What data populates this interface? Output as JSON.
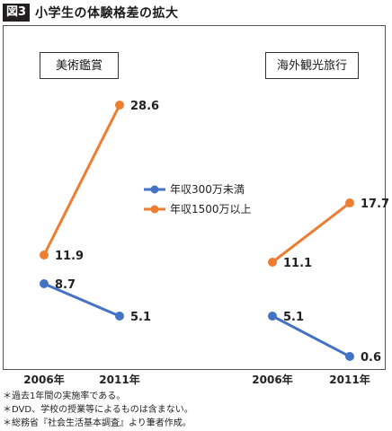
{
  "header": {
    "badge": "図3",
    "title": "小学生の体験格差の拡大"
  },
  "chart_data": {
    "type": "line",
    "panels": [
      {
        "title": "美術鑑賞",
        "categories": [
          "2006年",
          "2011年"
        ],
        "series": [
          {
            "name": "年収300万未満",
            "values": [
              8.7,
              5.1
            ]
          },
          {
            "name": "年収1500万以上",
            "values": [
              11.9,
              28.6
            ]
          }
        ]
      },
      {
        "title": "海外観光旅行",
        "categories": [
          "2006年",
          "2011年"
        ],
        "series": [
          {
            "name": "年収300万未満",
            "values": [
              5.1,
              0.6
            ]
          },
          {
            "name": "年収1500万以上",
            "values": [
              11.1,
              17.7
            ]
          }
        ]
      }
    ],
    "legend": [
      "年収300万未満",
      "年収1500万以上"
    ],
    "legend_position": "center",
    "colors": {
      "年収300万未満": "#4472c4",
      "年収1500万以上": "#ed7d31"
    },
    "grid": false,
    "y_axis_visible": false
  },
  "notes": [
    "＊過去1年間の実施率である。",
    "＊DVD、学校の授業等によるものは含まない。",
    "＊総務省『社会生活基本調査』より筆者作成。"
  ]
}
